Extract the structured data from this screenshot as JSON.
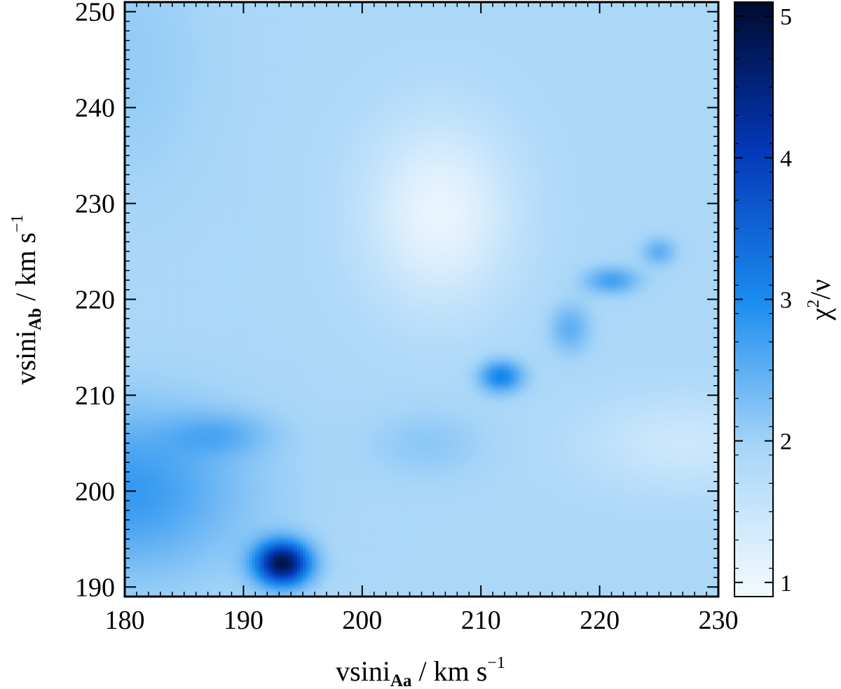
{
  "chart_data": {
    "type": "heatmap",
    "title": "",
    "xlabel": {
      "base": "vsini",
      "sub": "Aa",
      "rest": " / km s",
      "sup": "−1"
    },
    "ylabel": {
      "base": "vsini",
      "sub": "Ab",
      "rest": " / km s",
      "sup": "−1"
    },
    "xlim": [
      180,
      230
    ],
    "ylim": [
      189,
      251
    ],
    "xticks": [
      180,
      190,
      200,
      210,
      220,
      230
    ],
    "yticks": [
      190,
      200,
      210,
      220,
      230,
      240,
      250
    ],
    "colorbar": {
      "label": {
        "chi": "χ",
        "sup": "2",
        "rest": "/ν"
      },
      "range": [
        0.9,
        5.1
      ],
      "ticks": [
        1,
        2,
        3,
        4,
        5
      ],
      "colors": [
        "#f4fafe",
        "#a8d6f8",
        "#1a8bef",
        "#0438b8",
        "#000a2e"
      ]
    },
    "surface": {
      "base": 1.9,
      "components": [
        {
          "x0": 206.5,
          "y0": 229,
          "sx": 4.5,
          "sy": 7,
          "amp": -0.85
        },
        {
          "x0": 227,
          "y0": 205,
          "sx": 6,
          "sy": 3.5,
          "amp": -0.45
        },
        {
          "x0": 180,
          "y0": 200,
          "sx": 7,
          "sy": 6,
          "amp": 0.9
        },
        {
          "x0": 193.3,
          "y0": 192.5,
          "sx": 1.6,
          "sy": 1.6,
          "amp": 2.9
        },
        {
          "x0": 211.7,
          "y0": 212,
          "sx": 1.3,
          "sy": 1.2,
          "amp": 1.2
        },
        {
          "x0": 217.5,
          "y0": 217,
          "sx": 1.2,
          "sy": 1.8,
          "amp": 0.6
        },
        {
          "x0": 221,
          "y0": 222,
          "sx": 1.6,
          "sy": 1.0,
          "amp": 0.8
        },
        {
          "x0": 225,
          "y0": 225,
          "sx": 1.0,
          "sy": 1.0,
          "amp": 0.6
        },
        {
          "x0": 188,
          "y0": 206,
          "sx": 3.0,
          "sy": 1.6,
          "amp": 0.45
        },
        {
          "x0": 205.5,
          "y0": 205,
          "sx": 3.5,
          "sy": 2.5,
          "amp": 0.25
        },
        {
          "x0": 180,
          "y0": 245,
          "sx": 5,
          "sy": 10,
          "amp": 0.2
        }
      ]
    }
  }
}
